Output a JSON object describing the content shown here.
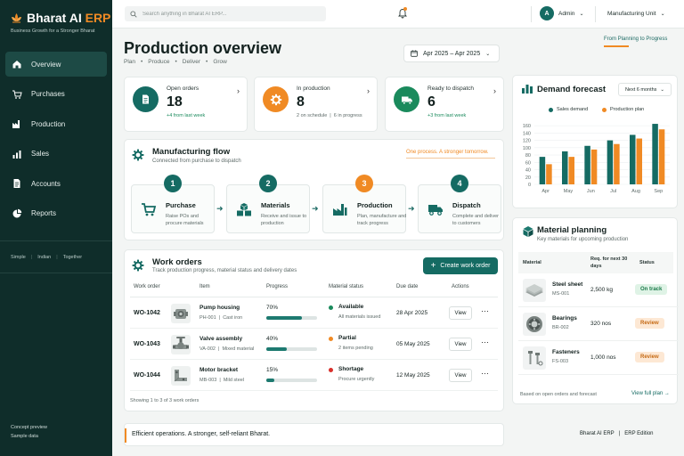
{
  "brand": {
    "title_main": "Bharat AI",
    "title_accent": "ERP",
    "tagline": "Business Growth for a Stronger Bharat"
  },
  "nav": [
    {
      "label": "Overview",
      "icon": "home-icon"
    },
    {
      "label": "Purchases",
      "icon": "cart-icon"
    },
    {
      "label": "Production",
      "icon": "factory-icon"
    },
    {
      "label": "Sales",
      "icon": "bar-chart-icon"
    },
    {
      "label": "Accounts",
      "icon": "document-icon"
    },
    {
      "label": "Reports",
      "icon": "pie-chart-icon"
    }
  ],
  "principles": [
    "Simple",
    "Indian",
    "Together"
  ],
  "concept": {
    "line1": "Concept preview",
    "line2": "Sample data"
  },
  "topbar": {
    "search_placeholder": "Search anything in Bharat AI ERP...",
    "avatar": "A",
    "user": "Admin",
    "unit": "Manufacturing Unit"
  },
  "page": {
    "title": "Production overview",
    "crumbs": [
      "Plan",
      "Produce",
      "Deliver",
      "Grow"
    ],
    "date_range": "Apr 2025 – Apr 2025",
    "slogan": "From Planning to Progress"
  },
  "kpis": [
    {
      "label": "Open orders",
      "value": "18",
      "sub": "+4 from last week",
      "color": "#156b63"
    },
    {
      "label": "In production",
      "value": "8",
      "sub_a": "2 on schedule",
      "sub_b": "6 in progress",
      "color": "#f08a24"
    },
    {
      "label": "Ready to dispatch",
      "value": "6",
      "sub": "+3 from last week",
      "color": "#1a8a5c"
    }
  ],
  "flow": {
    "title": "Manufacturing flow",
    "subtitle": "Connected from purchase to dispatch",
    "slogan": "One process. A stronger tomorrow.",
    "steps": [
      {
        "num": "1",
        "name": "Purchase",
        "desc": "Raise POs and procure materials"
      },
      {
        "num": "2",
        "name": "Materials",
        "desc": "Receive and issue to production"
      },
      {
        "num": "3",
        "name": "Production",
        "desc": "Plan, manufacture and track progress"
      },
      {
        "num": "4",
        "name": "Dispatch",
        "desc": "Complete and deliver to customers"
      }
    ]
  },
  "work_orders": {
    "title": "Work orders",
    "subtitle": "Track production progress, material status and delivery dates",
    "cta": "Create work order",
    "headers": [
      "Work order",
      "Item",
      "Progress",
      "Material status",
      "Due date",
      "Actions"
    ],
    "rows": [
      {
        "id": "WO-1042",
        "item": "Pump housing",
        "code": "PH-001",
        "material": "Cast iron",
        "pct": "70%",
        "progress": 0.7,
        "status": "Available",
        "status_detail": "All materials issued",
        "status_color": "#1a8a5c",
        "due": "28 Apr 2025",
        "action": "View"
      },
      {
        "id": "WO-1043",
        "item": "Valve assembly",
        "code": "VA-002",
        "material": "Mixed material",
        "pct": "40%",
        "progress": 0.4,
        "status": "Partial",
        "status_detail": "2 items pending",
        "status_color": "#f08a24",
        "due": "05 May 2025",
        "action": "View"
      },
      {
        "id": "WO-1044",
        "item": "Motor bracket",
        "code": "MB-003",
        "material": "Mild steel",
        "pct": "15%",
        "progress": 0.15,
        "status": "Shortage",
        "status_detail": "Procure urgently",
        "status_color": "#d9302c",
        "due": "12 May 2025",
        "action": "View"
      }
    ],
    "showing": "Showing 1 to 3 of 3 work orders"
  },
  "demand": {
    "title": "Demand forecast",
    "period": "Next 6 months",
    "chart_data": {
      "type": "bar",
      "title": "Demand forecast",
      "categories": [
        "Apr",
        "May",
        "Jun",
        "Jul",
        "Aug",
        "Sep"
      ],
      "series": [
        {
          "name": "Sales demand",
          "color": "#156b63",
          "values": [
            75,
            90,
            105,
            120,
            135,
            165
          ]
        },
        {
          "name": "Production plan",
          "color": "#f08a24",
          "values": [
            55,
            75,
            95,
            110,
            125,
            150
          ]
        }
      ],
      "yticks": [
        0,
        20,
        40,
        60,
        80,
        100,
        120,
        140,
        160
      ],
      "ylim": [
        0,
        170
      ],
      "legend": "top",
      "grid": true
    }
  },
  "materials": {
    "title": "Material planning",
    "subtitle": "Key materials for upcoming production",
    "headers": {
      "material": "Material",
      "req": "Req. for next 30 days",
      "status": "Status"
    },
    "rows": [
      {
        "name": "Steel sheet",
        "code": "MS-001",
        "qty": "2,500 kg",
        "status": "On track",
        "kind": "ok"
      },
      {
        "name": "Bearings",
        "code": "BR-002",
        "qty": "320 nos",
        "status": "Review",
        "kind": "rv"
      },
      {
        "name": "Fasteners",
        "code": "FS-003",
        "qty": "1,000 nos",
        "status": "Review",
        "kind": "rv"
      }
    ],
    "note": "Based on open orders and forecast",
    "link": "View full plan"
  },
  "footer": {
    "text": "Efficient operations. A stronger, self-reliant Bharat.",
    "brand": "Bharat AI ERP",
    "edition": "ERP Edition"
  }
}
